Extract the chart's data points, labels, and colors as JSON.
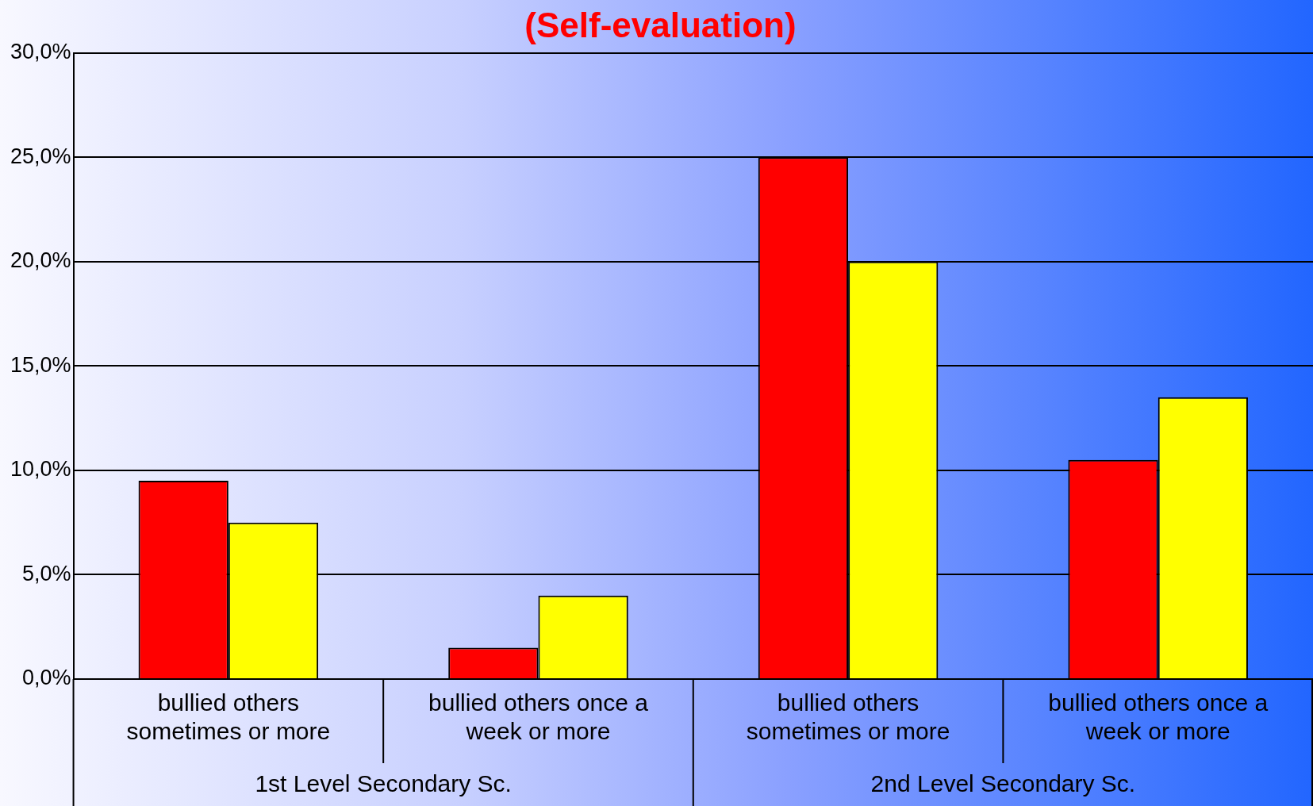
{
  "chart_data": {
    "type": "bar",
    "title": "(Self-evaluation)",
    "categories": [
      "bullied others sometimes or more",
      "bullied others once a week or more",
      "bullied others sometimes or more",
      "bullied others once a week or more"
    ],
    "series": [
      {
        "color": "#ff0000",
        "values": [
          9.5,
          1.5,
          25.0,
          10.5
        ]
      },
      {
        "color": "#ffff00",
        "values": [
          7.5,
          4.0,
          20.0,
          13.5
        ]
      }
    ],
    "ylim": [
      0,
      30
    ],
    "yticks": [
      {
        "value": 0,
        "label": "0,0%"
      },
      {
        "value": 5,
        "label": "5,0%"
      },
      {
        "value": 10,
        "label": "10,0%"
      },
      {
        "value": 15,
        "label": "15,0%"
      },
      {
        "value": 20,
        "label": "20,0%"
      },
      {
        "value": 25,
        "label": "25,0%"
      },
      {
        "value": 30,
        "label": "30,0%"
      }
    ],
    "grid": "y",
    "legend": false,
    "annotations": [
      "1st Level Secondary Sc.",
      "2nd Level Secondary Sc."
    ]
  }
}
